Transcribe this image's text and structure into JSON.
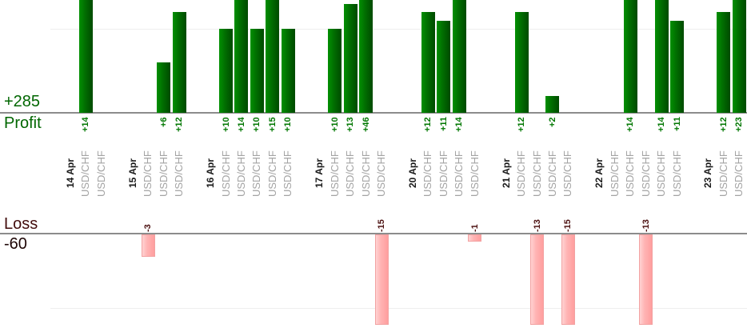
{
  "chart_data": {
    "type": "bar",
    "title": "",
    "profit_axis": {
      "total_label": "+285",
      "axis_label": "Profit",
      "gridline_values": [
        10
      ],
      "visible_range": [
        0,
        13.4
      ]
    },
    "loss_axis": {
      "axis_label": "Loss",
      "total_label": "-60",
      "gridline_values": [
        -10
      ],
      "visible_range": [
        0,
        -12.3
      ]
    },
    "groups": [
      {
        "date": "14 Apr",
        "trades": [
          {
            "symbol": "USD/CHF",
            "value": 14,
            "label": "+14"
          },
          {
            "symbol": "USD/CHF",
            "value": 0,
            "label": ""
          }
        ]
      },
      {
        "date": "15 Apr",
        "trades": [
          {
            "symbol": "USD/CHF",
            "value": -3,
            "label": "-3"
          },
          {
            "symbol": "USD/CHF",
            "value": 6,
            "label": "+6"
          },
          {
            "symbol": "USD/CHF",
            "value": 12,
            "label": "+12"
          }
        ]
      },
      {
        "date": "16 Apr",
        "trades": [
          {
            "symbol": "USD/CHF",
            "value": 10,
            "label": "+10"
          },
          {
            "symbol": "USD/CHF",
            "value": 14,
            "label": "+14"
          },
          {
            "symbol": "USD/CHF",
            "value": 10,
            "label": "+10"
          },
          {
            "symbol": "USD/CHF",
            "value": 15,
            "label": "+15"
          },
          {
            "symbol": "USD/CHF",
            "value": 10,
            "label": "+10"
          }
        ]
      },
      {
        "date": "17 Apr",
        "trades": [
          {
            "symbol": "USD/CHF",
            "value": 10,
            "label": "+10"
          },
          {
            "symbol": "USD/CHF",
            "value": 13,
            "label": "+13"
          },
          {
            "symbol": "USD/CHF",
            "value": 46,
            "label": "+46"
          },
          {
            "symbol": "USD/CHF",
            "value": -15,
            "label": "-15"
          }
        ]
      },
      {
        "date": "20 Apr",
        "trades": [
          {
            "symbol": "USD/CHF",
            "value": 12,
            "label": "+12"
          },
          {
            "symbol": "USD/CHF",
            "value": 11,
            "label": "+11"
          },
          {
            "symbol": "USD/CHF",
            "value": 14,
            "label": "+14"
          },
          {
            "symbol": "USD/CHF",
            "value": -1,
            "label": "-1"
          }
        ]
      },
      {
        "date": "21 Apr",
        "trades": [
          {
            "symbol": "USD/CHF",
            "value": 12,
            "label": "+12"
          },
          {
            "symbol": "USD/CHF",
            "value": -13,
            "label": "-13"
          },
          {
            "symbol": "USD/CHF",
            "value": 2,
            "label": "+2"
          },
          {
            "symbol": "USD/CHF",
            "value": -15,
            "label": "-15"
          }
        ]
      },
      {
        "date": "22 Apr",
        "trades": [
          {
            "symbol": "USD/CHF",
            "value": 0,
            "label": ""
          },
          {
            "symbol": "USD/CHF",
            "value": 14,
            "label": "+14"
          },
          {
            "symbol": "USD/CHF",
            "value": -13,
            "label": "-13"
          },
          {
            "symbol": "USD/CHF",
            "value": 14,
            "label": "+14"
          },
          {
            "symbol": "USD/CHF",
            "value": 11,
            "label": "+11"
          }
        ]
      },
      {
        "date": "23 Apr",
        "trades": [
          {
            "symbol": "USD/CHF",
            "value": 12,
            "label": "+12"
          },
          {
            "symbol": "USD/CHF",
            "value": 23,
            "label": "+23"
          }
        ]
      }
    ],
    "colors": {
      "profit_bar": "#006b00",
      "profit_total_text": "#006600",
      "profit_value_text": "#007700",
      "loss_bar": "#ffaaaa",
      "loss_label_text": "#420c0c",
      "loss_total_text": "#1e0606",
      "loss_value_text": "#4d1212",
      "date_text": "#1a1a1a",
      "symbol_text": "#a3a3a3",
      "axis_line": "#8c8c8c",
      "gridline": "#eeeeee"
    }
  }
}
